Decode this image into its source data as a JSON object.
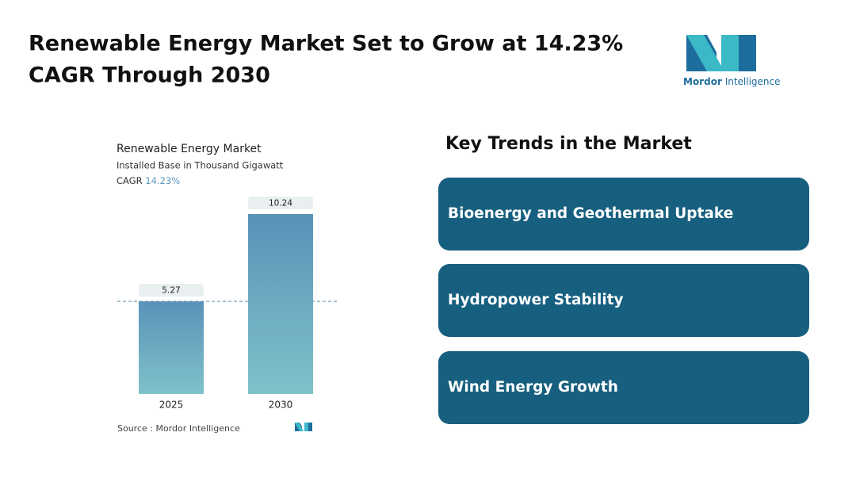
{
  "header": {
    "title_lines": [
      "Renewable Energy Market Set to Grow at 14.23%",
      "CAGR Through 2030"
    ]
  },
  "logo": {
    "brand": "Mordor",
    "suffix": "Intelligence"
  },
  "chart_data": {
    "type": "bar",
    "title": "Renewable Energy Market",
    "subtitle": "Installed Base in Thousand Gigawatt",
    "cagr_label": "CAGR",
    "cagr_value": "14.23%",
    "categories": [
      "2025",
      "2030"
    ],
    "values": [
      5.27,
      10.24
    ],
    "color_top": "#5a92b8",
    "color_bottom": "#80c2ca"
  },
  "source": {
    "label": "Source :",
    "text": "Mordor Intelligence"
  },
  "key_trends": {
    "title": "Key Trends in the Market",
    "items": [
      "Bioenergy and Geothermal Uptake",
      "Hydropower Stability",
      "Wind Energy Growth"
    ]
  }
}
